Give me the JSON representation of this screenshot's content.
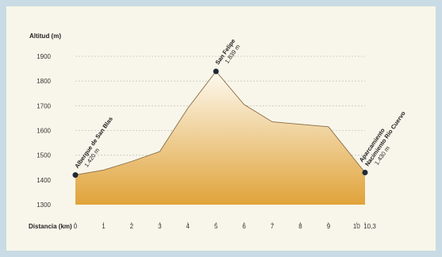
{
  "chart_data": {
    "type": "area",
    "ylabel": "Altitud (m)",
    "xlabel": "Distancia (km)",
    "ylim": [
      1300,
      1900
    ],
    "xlim": [
      0,
      10.3
    ],
    "y_ticks": [
      "1900",
      "1800",
      "1700",
      "1600",
      "1500",
      "1400",
      "1300"
    ],
    "x_ticks": [
      "0",
      "1",
      "2",
      "3",
      "4",
      "5",
      "6",
      "7",
      "8",
      "9",
      "10",
      "10,3"
    ],
    "grid": true,
    "points": [
      {
        "x": 0,
        "y": 1420
      },
      {
        "x": 1,
        "y": 1440
      },
      {
        "x": 2,
        "y": 1475
      },
      {
        "x": 3,
        "y": 1515
      },
      {
        "x": 4,
        "y": 1690
      },
      {
        "x": 5,
        "y": 1839
      },
      {
        "x": 6,
        "y": 1705
      },
      {
        "x": 7,
        "y": 1635
      },
      {
        "x": 8,
        "y": 1625
      },
      {
        "x": 9,
        "y": 1615
      },
      {
        "x": 10.3,
        "y": 1430
      }
    ],
    "annotations": [
      {
        "x": 0,
        "y": 1420,
        "name": "Albergue de San Blas",
        "elevation": "1.420 m"
      },
      {
        "x": 5,
        "y": 1839,
        "name": "San Felipe",
        "elevation": "1.839 m"
      },
      {
        "x": 10.3,
        "y": 1430,
        "name": "Aparcamiento Nacimiento Río Cuervo",
        "elevation": "1.430 m"
      }
    ],
    "colors": {
      "fill_top": "#fdfaf0",
      "fill_bottom": "#e0a33a",
      "line": "#8a6a45",
      "grid": "#c8c5b8",
      "marker": "#1e2a35"
    }
  }
}
